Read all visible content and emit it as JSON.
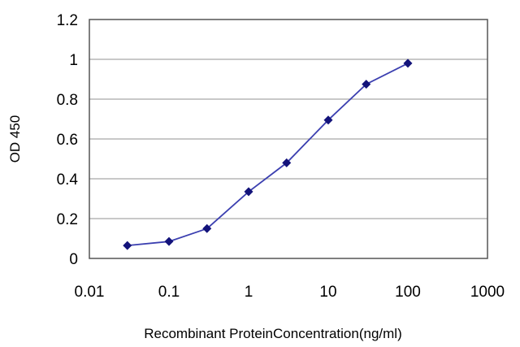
{
  "chart_data": {
    "type": "line",
    "title": "",
    "xlabel": "Recombinant ProteinConcentration(ng/ml)",
    "ylabel": "OD 450",
    "xscale": "log",
    "xlim": [
      0.01,
      1000
    ],
    "ylim": [
      0,
      1.2
    ],
    "xticks": [
      "0.01",
      "0.1",
      "1",
      "10",
      "100",
      "1000"
    ],
    "yticks": [
      "0",
      "0.2",
      "0.4",
      "0.6",
      "0.8",
      "1",
      "1.2"
    ],
    "grid": "horizontal",
    "legend": "none",
    "series": [
      {
        "x": [
          0.03,
          0.1,
          0.3,
          1,
          3,
          10,
          30,
          100
        ],
        "y": [
          0.065,
          0.085,
          0.15,
          0.335,
          0.48,
          0.695,
          0.875,
          0.98
        ],
        "color": "#3b3fb0",
        "marker_color": "#13137a"
      }
    ],
    "colors": {
      "plot_border": "#555555",
      "gridline": "#a6a6a6",
      "line": "#3b3fb0",
      "marker": "#13137a"
    }
  }
}
